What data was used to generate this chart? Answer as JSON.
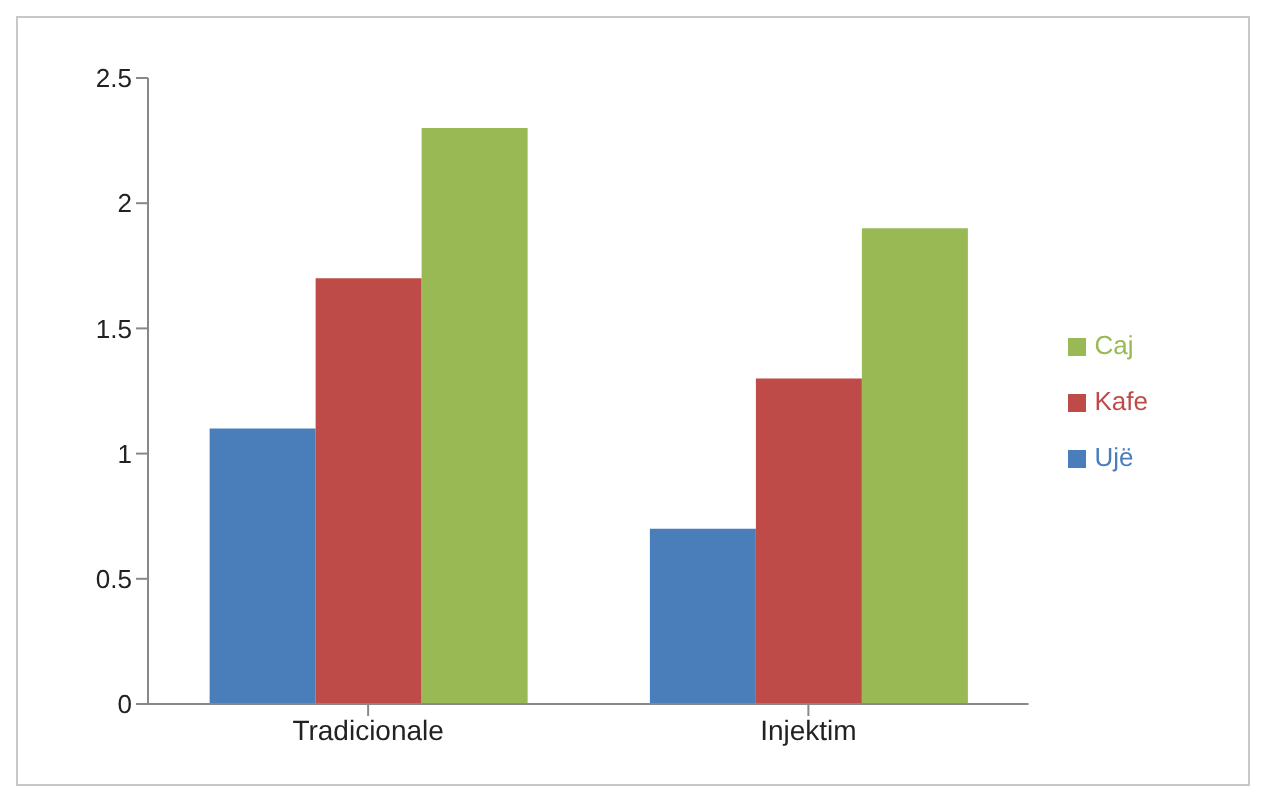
{
  "chart_data": {
    "type": "bar",
    "categories": [
      "Tradicionale",
      "Injektim"
    ],
    "series": [
      {
        "name": "Ujë",
        "color": "#4a7ebb",
        "values": [
          1.1,
          0.7
        ]
      },
      {
        "name": "Kafe",
        "color": "#be4b48",
        "values": [
          1.7,
          1.3
        ]
      },
      {
        "name": "Caj",
        "color": "#98b954",
        "values": [
          2.3,
          1.9
        ]
      }
    ],
    "ylim": [
      0,
      2.5
    ],
    "yticks": [
      0,
      0.5,
      1,
      1.5,
      2,
      2.5
    ],
    "grid": false,
    "legend": "right"
  }
}
